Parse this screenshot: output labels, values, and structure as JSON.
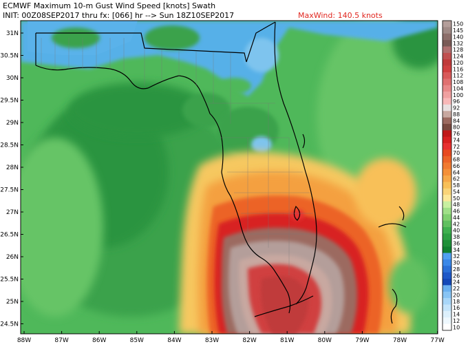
{
  "header": {
    "title": "ECMWF Maximum 10-m Gust Wind Speed [knots] Swath",
    "init_line": "INIT: 00Z08SEP2017 thru fx: [066] hr --> Sun 18Z10SEP2017",
    "maxwind": "MaxWind: 140.5 knots"
  },
  "lat_labels": [
    "31N",
    "30.5N",
    "30N",
    "29.5N",
    "29N",
    "28.5N",
    "28N",
    "27.5N",
    "27N",
    "26.5N",
    "26N",
    "25.5N",
    "25N",
    "24.5N"
  ],
  "lon_labels": [
    "88W",
    "87W",
    "86W",
    "85W",
    "84W",
    "83W",
    "82W",
    "81W",
    "80W",
    "79W",
    "78W",
    "77W"
  ],
  "colorbar": {
    "labels": [
      "150",
      "145",
      "140",
      "132",
      "128",
      "124",
      "120",
      "116",
      "112",
      "108",
      "104",
      "100",
      "96",
      "92",
      "88",
      "84",
      "80",
      "76",
      "74",
      "72",
      "70",
      "68",
      "66",
      "64",
      "62",
      "58",
      "54",
      "50",
      "48",
      "46",
      "44",
      "42",
      "40",
      "38",
      "36",
      "34",
      "32",
      "30",
      "28",
      "26",
      "24",
      "22",
      "20",
      "18",
      "16",
      "14",
      "12",
      "10"
    ],
    "colors": [
      "#b49e9a",
      "#a08a86",
      "#8c6e6a",
      "#7a5a56",
      "#b07070",
      "#c05050",
      "#c03a3a",
      "#d04040",
      "#d85a5a",
      "#e07070",
      "#e88888",
      "#f0a0a0",
      "#f8b8b8",
      "#e8e0e0",
      "#c8a8a0",
      "#9c6a60",
      "#7a4a40",
      "#c01818",
      "#d82020",
      "#e83030",
      "#e84a20",
      "#ec6428",
      "#f07a30",
      "#f49038",
      "#f6a848",
      "#f8c058",
      "#fad478",
      "#fce898",
      "#c8f0a0",
      "#a0e088",
      "#80d070",
      "#60c060",
      "#40b050",
      "#2ea044",
      "#1e9038",
      "#108030",
      "#50a0f0",
      "#3a88e8",
      "#2a70d8",
      "#1e58c8",
      "#1448b8",
      "#6ab0f0",
      "#88c4f4",
      "#a8d6f8",
      "#c4e4fa",
      "#dcf0fc",
      "#eef8fe",
      "#ffffff"
    ]
  }
}
